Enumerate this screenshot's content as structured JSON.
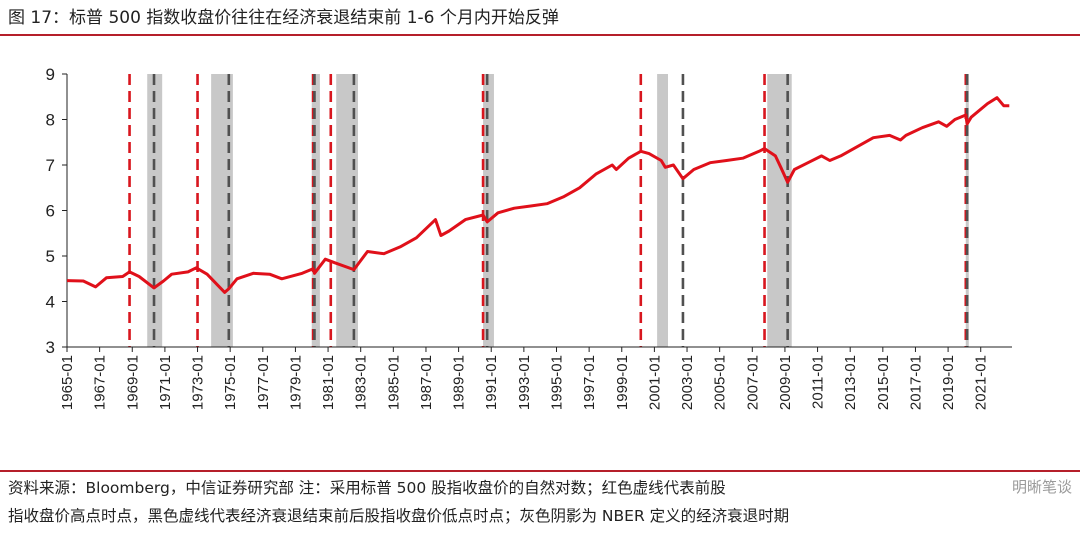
{
  "title": "图 17：标普 500 指数收盘价往往在经济衰退结束前 1-6 个月内开始反弹",
  "source_line1": "资料来源：Bloomberg，中信证券研究部    注：采用标普 500 股指收盘价的自然对数；红色虚线代表前股",
  "source_line2": "指收盘价高点时点，黑色虚线代表经济衰退结束前后股指收盘价低点时点；灰色阴影为 NBER 定义的经济衰退时期",
  "watermark": "明晰笔谈",
  "colors": {
    "line": "#e0101a",
    "peak": "#d8161e",
    "trough": "#505050",
    "recession": "#c8c8c8",
    "rule": "#b51f2a"
  },
  "chart_data": {
    "type": "line",
    "title": "",
    "xlabel": "",
    "ylabel": "",
    "ylim": [
      3,
      9
    ],
    "yticks": [
      3,
      4,
      5,
      6,
      7,
      8,
      9
    ],
    "xlim": [
      "1965-01",
      "2022-12"
    ],
    "xticks": [
      "1965-01",
      "1967-01",
      "1969-01",
      "1971-01",
      "1973-01",
      "1975-01",
      "1977-01",
      "1979-01",
      "1981-01",
      "1983-01",
      "1985-01",
      "1987-01",
      "1989-01",
      "1991-01",
      "1993-01",
      "1995-01",
      "1997-01",
      "1999-01",
      "2001-01",
      "2003-01",
      "2005-01",
      "2007-01",
      "2009-01",
      "2011-01",
      "2013-01",
      "2015-01",
      "2017-01",
      "2019-01",
      "2021-01"
    ],
    "series": [
      {
        "x": [
          "1965-01",
          "1966-01",
          "1966-10",
          "1967-06",
          "1968-06",
          "1968-11",
          "1969-06",
          "1970-05",
          "1970-12",
          "1971-06",
          "1972-06",
          "1972-12",
          "1973-08",
          "1974-09",
          "1974-12",
          "1975-06",
          "1976-06",
          "1977-06",
          "1978-03",
          "1979-06",
          "1980-02",
          "1980-03",
          "1980-11",
          "1981-06",
          "1982-08",
          "1983-06",
          "1984-06",
          "1985-06",
          "1986-06",
          "1987-08",
          "1987-12",
          "1988-06",
          "1989-06",
          "1990-07",
          "1990-10",
          "1991-06",
          "1992-06",
          "1993-06",
          "1994-06",
          "1995-06",
          "1996-06",
          "1997-06",
          "1998-06",
          "1998-09",
          "1999-06",
          "2000-03",
          "2000-09",
          "2001-06",
          "2001-09",
          "2002-03",
          "2002-10",
          "2003-06",
          "2004-06",
          "2005-06",
          "2006-06",
          "2007-06",
          "2007-10",
          "2008-06",
          "2008-10",
          "2009-03",
          "2009-08",
          "2010-06",
          "2011-04",
          "2011-10",
          "2012-06",
          "2013-06",
          "2014-06",
          "2015-06",
          "2016-02",
          "2016-06",
          "2017-06",
          "2018-06",
          "2018-12",
          "2019-06",
          "2020-02",
          "2020-03",
          "2020-06",
          "2021-06",
          "2022-01",
          "2022-06",
          "2022-10"
        ],
        "values": [
          4.46,
          4.45,
          4.32,
          4.52,
          4.55,
          4.65,
          4.55,
          4.3,
          4.45,
          4.6,
          4.65,
          4.74,
          4.6,
          4.2,
          4.28,
          4.5,
          4.62,
          4.6,
          4.5,
          4.62,
          4.72,
          4.62,
          4.93,
          4.85,
          4.7,
          5.1,
          5.05,
          5.2,
          5.4,
          5.8,
          5.45,
          5.55,
          5.8,
          5.9,
          5.75,
          5.95,
          6.05,
          6.1,
          6.15,
          6.3,
          6.5,
          6.8,
          7.0,
          6.9,
          7.15,
          7.3,
          7.25,
          7.1,
          6.95,
          7.0,
          6.7,
          6.9,
          7.05,
          7.1,
          7.15,
          7.3,
          7.36,
          7.2,
          6.95,
          6.62,
          6.9,
          7.05,
          7.2,
          7.1,
          7.2,
          7.4,
          7.6,
          7.65,
          7.55,
          7.65,
          7.82,
          7.95,
          7.85,
          8.0,
          8.1,
          7.9,
          8.05,
          8.35,
          8.48,
          8.3,
          8.3
        ]
      }
    ],
    "recessions": [
      [
        "1969-12",
        "1970-11"
      ],
      [
        "1973-11",
        "1975-03"
      ],
      [
        "1980-01",
        "1980-07"
      ],
      [
        "1981-07",
        "1982-11"
      ],
      [
        "1990-07",
        "1991-03"
      ],
      [
        "2001-03",
        "2001-11"
      ],
      [
        "2007-12",
        "2009-06"
      ],
      [
        "2020-02",
        "2020-04"
      ]
    ],
    "peak_markers": [
      "1968-11",
      "1973-01",
      "1980-02",
      "1981-03",
      "1990-07",
      "2000-03",
      "2007-10",
      "2020-02"
    ],
    "trough_markers": [
      "1970-05",
      "1974-12",
      "1980-03",
      "1982-08",
      "1990-10",
      "2002-10",
      "2009-03",
      "2020-03"
    ]
  }
}
